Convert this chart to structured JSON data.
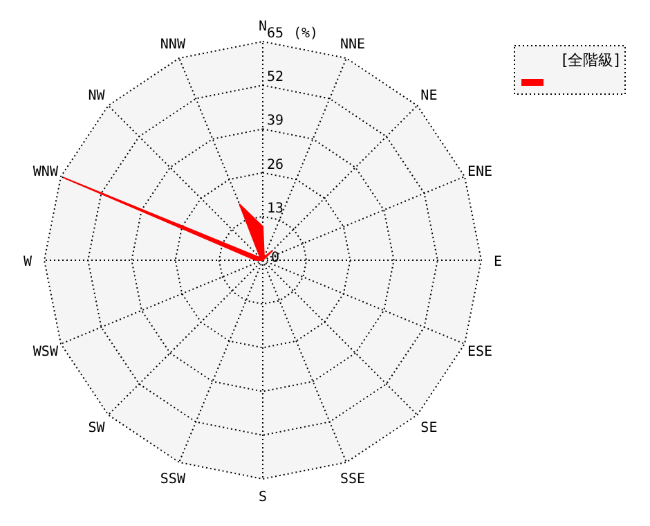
{
  "chart_data": {
    "type": "radar",
    "categories": [
      "N",
      "NNE",
      "NE",
      "ENE",
      "E",
      "ESE",
      "SE",
      "SSE",
      "S",
      "SSW",
      "SW",
      "WSW",
      "W",
      "WNW",
      "NW",
      "NNW"
    ],
    "series": [
      {
        "name": "[全階級]",
        "color": "#ff0000",
        "values": [
          10,
          1,
          4,
          0,
          0,
          0,
          0,
          0,
          0,
          0,
          0,
          0,
          2,
          64,
          1,
          18
        ]
      }
    ],
    "ylim": [
      0,
      65
    ],
    "yticks": [
      0,
      13,
      26,
      39,
      52,
      65
    ],
    "ylabel": "(%)",
    "legend": "top right",
    "grid": true
  }
}
